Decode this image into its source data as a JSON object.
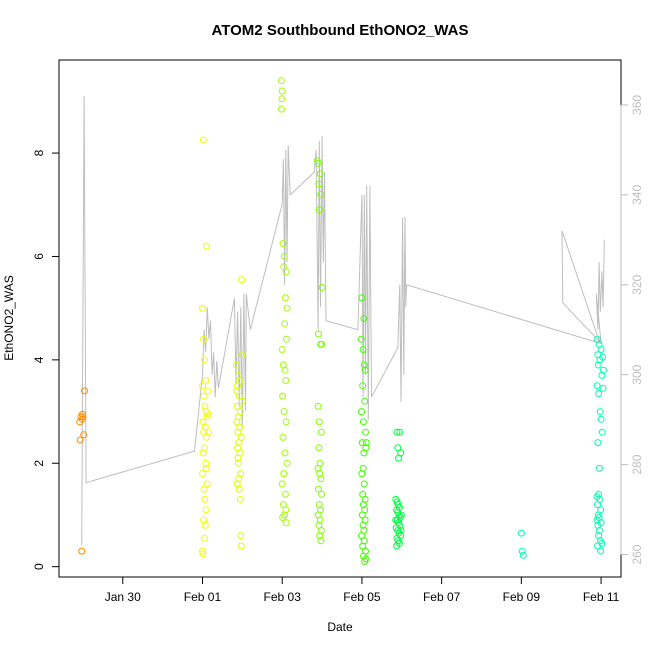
{
  "chart_data": {
    "type": "scatter",
    "title": "ATOM2 Southbound EthONO2_WAS",
    "xlabel": "Date",
    "ylabel": "EthONO2_WAS",
    "x_ticks": [
      "Jan 30",
      "Feb 01",
      "Feb 03",
      "Feb 05",
      "Feb 07",
      "Feb 09",
      "Feb 11"
    ],
    "x_tick_days": [
      30,
      32,
      34,
      36,
      38,
      40,
      42
    ],
    "xlim_days": [
      28.4,
      42.5
    ],
    "ylim": [
      -0.2,
      9.8
    ],
    "y_ticks": [
      "0",
      "2",
      "4",
      "6",
      "8"
    ],
    "y_tick_values": [
      0,
      2,
      4,
      6,
      8
    ],
    "y2lim": [
      255,
      370
    ],
    "y2_ticks": [
      "260",
      "280",
      "300",
      "320",
      "340",
      "360"
    ],
    "y2_tick_values": [
      260,
      280,
      300,
      320,
      340,
      360
    ],
    "y2_color": "#bebebe",
    "grid": false,
    "series": [
      {
        "color": "#ff8c00",
        "points": [
          [
            28.92,
            2.8
          ],
          [
            28.95,
            2.9
          ],
          [
            28.98,
            2.85
          ],
          [
            29.0,
            2.9
          ],
          [
            28.93,
            2.45
          ],
          [
            29.02,
            2.55
          ],
          [
            29.04,
            3.4
          ],
          [
            28.99,
            2.95
          ],
          [
            28.97,
            0.3
          ]
        ]
      },
      {
        "color": "#f0ff00",
        "points": [
          [
            32.02,
            8.25
          ],
          [
            32.1,
            6.2
          ],
          [
            32.0,
            5.0
          ],
          [
            32.03,
            4.4
          ],
          [
            32.05,
            4.0
          ],
          [
            32.08,
            3.6
          ],
          [
            32.0,
            3.5
          ],
          [
            32.04,
            3.3
          ],
          [
            32.06,
            3.1
          ],
          [
            32.09,
            3.0
          ],
          [
            32.12,
            2.9
          ],
          [
            32.01,
            2.8
          ],
          [
            32.07,
            2.7
          ],
          [
            32.03,
            2.6
          ],
          [
            32.1,
            2.5
          ],
          [
            32.05,
            2.3
          ],
          [
            32.02,
            2.2
          ],
          [
            32.08,
            2.0
          ],
          [
            32.0,
            1.8
          ],
          [
            32.11,
            1.6
          ],
          [
            32.04,
            1.5
          ],
          [
            32.06,
            1.3
          ],
          [
            32.09,
            1.1
          ],
          [
            32.03,
            0.9
          ],
          [
            32.07,
            0.8
          ],
          [
            32.0,
            0.3
          ],
          [
            32.01,
            0.25
          ],
          [
            32.13,
            3.4
          ],
          [
            32.14,
            2.95
          ],
          [
            32.15,
            2.6
          ],
          [
            32.05,
            0.55
          ],
          [
            32.1,
            1.9
          ]
        ]
      },
      {
        "color": "#dcff00",
        "points": [
          [
            32.85,
            3.9
          ],
          [
            32.9,
            3.7
          ],
          [
            32.88,
            3.5
          ],
          [
            32.92,
            3.3
          ],
          [
            32.87,
            3.1
          ],
          [
            32.95,
            3.0
          ],
          [
            32.9,
            2.9
          ],
          [
            32.86,
            2.8
          ],
          [
            32.93,
            2.7
          ],
          [
            32.89,
            2.6
          ],
          [
            32.97,
            2.5
          ],
          [
            32.91,
            2.4
          ],
          [
            32.88,
            2.3
          ],
          [
            32.94,
            2.2
          ],
          [
            32.9,
            2.0
          ],
          [
            32.96,
            1.8
          ],
          [
            32.87,
            1.6
          ],
          [
            32.92,
            1.5
          ],
          [
            32.95,
            1.3
          ],
          [
            32.98,
            5.55
          ],
          [
            32.96,
            0.6
          ],
          [
            32.97,
            0.4
          ],
          [
            32.99,
            4.1
          ],
          [
            33.0,
            3.2
          ],
          [
            32.93,
            3.6
          ],
          [
            32.89,
            2.1
          ],
          [
            32.86,
            3.4
          ],
          [
            32.91,
            1.7
          ]
        ]
      },
      {
        "color": "#a0ff00",
        "points": [
          [
            33.98,
            9.4
          ],
          [
            34.0,
            9.2
          ],
          [
            33.99,
            9.05
          ],
          [
            33.98,
            8.85
          ],
          [
            34.02,
            6.25
          ],
          [
            34.05,
            6.0
          ],
          [
            34.04,
            5.8
          ],
          [
            34.1,
            5.7
          ],
          [
            34.08,
            5.2
          ],
          [
            34.12,
            5.0
          ],
          [
            34.06,
            4.7
          ],
          [
            34.0,
            4.2
          ],
          [
            34.03,
            3.9
          ],
          [
            34.09,
            3.6
          ],
          [
            34.01,
            3.3
          ],
          [
            34.05,
            3.0
          ],
          [
            34.1,
            2.8
          ],
          [
            34.02,
            2.5
          ],
          [
            34.07,
            2.2
          ],
          [
            34.04,
            1.8
          ],
          [
            34.0,
            1.6
          ],
          [
            34.08,
            1.4
          ],
          [
            34.03,
            1.2
          ],
          [
            34.06,
            1.0
          ],
          [
            34.1,
            0.85
          ],
          [
            34.01,
            0.95
          ],
          [
            34.09,
            1.1
          ],
          [
            34.12,
            2.0
          ],
          [
            34.07,
            3.8
          ],
          [
            34.11,
            4.4
          ]
        ]
      },
      {
        "color": "#80ff00",
        "points": [
          [
            34.9,
            7.8
          ],
          [
            34.95,
            7.6
          ],
          [
            34.92,
            7.4
          ],
          [
            34.97,
            7.2
          ],
          [
            34.93,
            6.9
          ],
          [
            35.0,
            5.4
          ],
          [
            34.91,
            4.5
          ],
          [
            34.96,
            4.3
          ],
          [
            34.9,
            3.1
          ],
          [
            34.93,
            2.8
          ],
          [
            34.98,
            2.6
          ],
          [
            34.92,
            2.3
          ],
          [
            34.95,
            2.0
          ],
          [
            34.9,
            1.9
          ],
          [
            34.94,
            1.8
          ],
          [
            34.97,
            1.7
          ],
          [
            34.91,
            1.5
          ],
          [
            34.99,
            1.4
          ],
          [
            34.93,
            1.2
          ],
          [
            34.96,
            1.1
          ],
          [
            34.9,
            1.0
          ],
          [
            34.95,
            0.9
          ],
          [
            34.92,
            0.8
          ],
          [
            34.98,
            0.7
          ],
          [
            34.94,
            0.6
          ],
          [
            34.97,
            0.5
          ],
          [
            34.88,
            7.85
          ],
          [
            34.99,
            4.3
          ]
        ]
      },
      {
        "color": "#40ff00",
        "points": [
          [
            36.0,
            5.2
          ],
          [
            36.05,
            4.8
          ],
          [
            35.98,
            4.4
          ],
          [
            36.03,
            4.2
          ],
          [
            36.06,
            3.9
          ],
          [
            36.08,
            3.8
          ],
          [
            36.02,
            3.5
          ],
          [
            36.07,
            3.2
          ],
          [
            35.99,
            3.0
          ],
          [
            36.04,
            2.8
          ],
          [
            36.09,
            2.6
          ],
          [
            36.01,
            2.4
          ],
          [
            36.05,
            2.2
          ],
          [
            36.1,
            2.3
          ],
          [
            36.03,
            1.9
          ],
          [
            36.0,
            1.8
          ],
          [
            36.06,
            1.6
          ],
          [
            36.02,
            1.4
          ],
          [
            36.04,
            1.2
          ],
          [
            36.07,
            1.1
          ],
          [
            36.01,
            1.0
          ],
          [
            36.08,
            0.9
          ],
          [
            36.03,
            0.8
          ],
          [
            36.05,
            0.7
          ],
          [
            35.99,
            0.6
          ],
          [
            36.06,
            0.5
          ],
          [
            36.02,
            0.4
          ],
          [
            36.09,
            0.3
          ],
          [
            36.04,
            0.2
          ],
          [
            36.1,
            0.15
          ],
          [
            36.07,
            0.1
          ],
          [
            36.08,
            1.3
          ],
          [
            36.11,
            2.4
          ]
        ]
      },
      {
        "color": "#00ff40",
        "points": [
          [
            36.88,
            2.6
          ],
          [
            36.95,
            2.6
          ],
          [
            36.9,
            2.3
          ],
          [
            36.97,
            2.2
          ],
          [
            36.92,
            2.1
          ],
          [
            36.85,
            1.3
          ],
          [
            36.88,
            1.25
          ],
          [
            36.91,
            1.2
          ],
          [
            36.94,
            1.15
          ],
          [
            36.87,
            1.1
          ],
          [
            36.9,
            1.05
          ],
          [
            36.93,
            1.0
          ],
          [
            36.96,
            0.95
          ],
          [
            36.89,
            0.9
          ],
          [
            36.92,
            0.85
          ],
          [
            36.95,
            0.8
          ],
          [
            36.86,
            0.75
          ],
          [
            36.9,
            0.7
          ],
          [
            36.93,
            0.65
          ],
          [
            36.97,
            0.6
          ],
          [
            36.88,
            0.55
          ],
          [
            36.91,
            0.5
          ],
          [
            36.94,
            0.45
          ],
          [
            36.87,
            0.4
          ],
          [
            36.98,
            0.7
          ],
          [
            36.99,
            1.0
          ],
          [
            36.85,
            0.9
          ]
        ]
      },
      {
        "color": "#00ffb0",
        "points": [
          [
            40.0,
            0.65
          ],
          [
            40.02,
            0.3
          ],
          [
            40.05,
            0.22
          ],
          [
            41.9,
            4.4
          ],
          [
            41.95,
            4.3
          ],
          [
            42.0,
            4.2
          ],
          [
            41.92,
            4.1
          ],
          [
            41.97,
            4.0
          ],
          [
            41.93,
            3.9
          ],
          [
            42.02,
            3.7
          ],
          [
            41.9,
            3.5
          ],
          [
            42.05,
            3.45
          ],
          [
            41.94,
            3.35
          ],
          [
            41.98,
            3.0
          ],
          [
            42.0,
            2.85
          ],
          [
            42.03,
            2.6
          ],
          [
            41.92,
            2.4
          ],
          [
            41.96,
            1.9
          ],
          [
            41.94,
            1.4
          ],
          [
            41.9,
            1.35
          ],
          [
            41.97,
            1.3
          ],
          [
            41.91,
            1.2
          ],
          [
            41.99,
            1.1
          ],
          [
            41.93,
            1.0
          ],
          [
            41.95,
            0.95
          ],
          [
            41.9,
            0.9
          ],
          [
            42.0,
            0.85
          ],
          [
            41.92,
            0.8
          ],
          [
            41.96,
            0.7
          ],
          [
            41.94,
            0.6
          ],
          [
            41.98,
            0.5
          ],
          [
            42.02,
            0.45
          ],
          [
            41.91,
            0.4
          ],
          [
            41.99,
            0.3
          ],
          [
            42.04,
            4.05
          ],
          [
            42.06,
            3.8
          ]
        ]
      }
    ],
    "secondary_line": {
      "color": "#bebebe",
      "points": [
        [
          28.97,
          262
        ],
        [
          29.03,
          362
        ],
        [
          29.08,
          276
        ],
        [
          31.8,
          283
        ],
        [
          32.0,
          300
        ],
        [
          32.04,
          310
        ],
        [
          32.08,
          305
        ],
        [
          32.12,
          315
        ],
        [
          32.16,
          308
        ],
        [
          32.2,
          312
        ],
        [
          32.24,
          300
        ],
        [
          32.28,
          305
        ],
        [
          32.32,
          295
        ],
        [
          32.36,
          303
        ],
        [
          32.4,
          297
        ],
        [
          32.8,
          317
        ],
        [
          32.84,
          298
        ],
        [
          32.88,
          314
        ],
        [
          32.92,
          293
        ],
        [
          32.96,
          315
        ],
        [
          33.0,
          288
        ],
        [
          33.04,
          318
        ],
        [
          33.08,
          292
        ],
        [
          33.1,
          318
        ],
        [
          33.2,
          310
        ],
        [
          34.0,
          338
        ],
        [
          34.03,
          348
        ],
        [
          34.06,
          320
        ],
        [
          34.09,
          350
        ],
        [
          34.12,
          325
        ],
        [
          34.15,
          351
        ],
        [
          34.2,
          340
        ],
        [
          34.8,
          345
        ],
        [
          34.85,
          350
        ],
        [
          34.9,
          310
        ],
        [
          34.93,
          352
        ],
        [
          34.96,
          315
        ],
        [
          35.0,
          353
        ],
        [
          35.03,
          325
        ],
        [
          35.06,
          345
        ],
        [
          35.1,
          312
        ],
        [
          35.9,
          310
        ],
        [
          36.0,
          340
        ],
        [
          36.03,
          295
        ],
        [
          36.06,
          340
        ],
        [
          36.09,
          300
        ],
        [
          36.12,
          342
        ],
        [
          36.16,
          290
        ],
        [
          36.2,
          342
        ],
        [
          36.24,
          295
        ],
        [
          36.9,
          306
        ],
        [
          36.95,
          320
        ],
        [
          36.98,
          294
        ],
        [
          37.02,
          335
        ],
        [
          37.05,
          300
        ],
        [
          37.08,
          335
        ],
        [
          37.1,
          315
        ],
        [
          37.12,
          320
        ],
        [
          41.97,
          307
        ],
        [
          41.02,
          332
        ],
        [
          41.04,
          316
        ],
        [
          42.0,
          307
        ],
        [
          41.88,
          318
        ],
        [
          41.92,
          310
        ],
        [
          41.95,
          325
        ],
        [
          41.98,
          314
        ],
        [
          42.02,
          323
        ],
        [
          42.05,
          315
        ],
        [
          42.08,
          330
        ]
      ]
    }
  }
}
